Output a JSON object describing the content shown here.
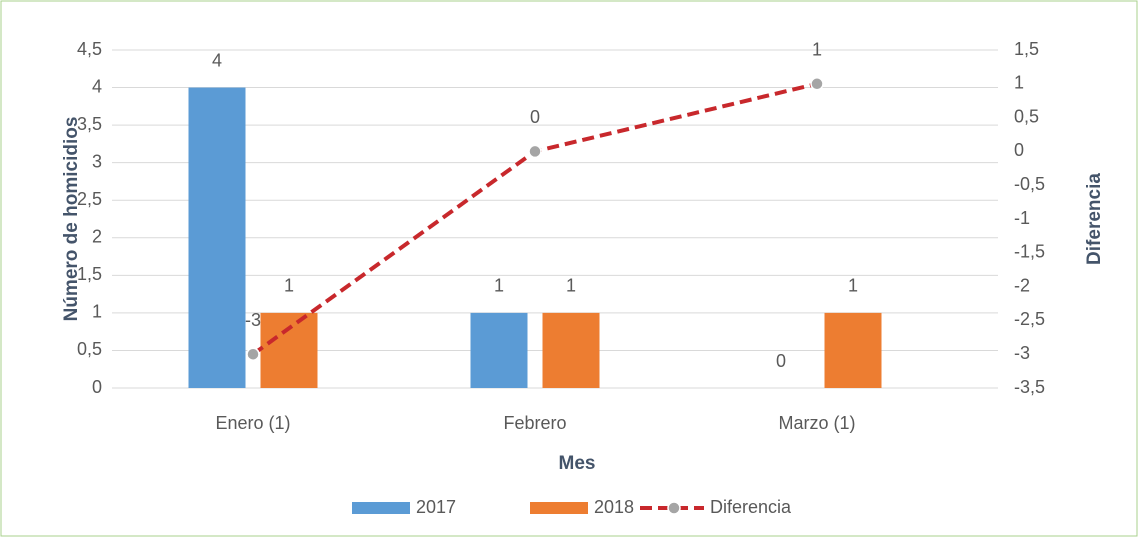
{
  "chart_data": {
    "type": "bar",
    "categories": [
      "Enero (1)",
      "Febrero",
      "Marzo (1)"
    ],
    "series": [
      {
        "name": "2017",
        "type": "bar",
        "color": "#5b9bd5",
        "values": [
          4,
          1,
          0
        ]
      },
      {
        "name": "2018",
        "type": "bar",
        "color": "#ed7d31",
        "values": [
          1,
          1,
          1
        ]
      },
      {
        "name": "Diferencia",
        "type": "line",
        "axis": "y2",
        "color": "#c8282c",
        "marker_color": "#a5a5a5",
        "values": [
          -3,
          0,
          1
        ]
      }
    ],
    "x_label": "Mes",
    "y_label": "Número de homicidios",
    "y2_label": "Diferencia",
    "ylim": [
      0,
      4.5
    ],
    "yticks": [
      0,
      {
        "value": 0.5,
        "label": "0,5"
      },
      1,
      {
        "value": 1.5,
        "label": "1,5"
      },
      2,
      {
        "value": 2.5,
        "label": "2,5"
      },
      3,
      {
        "value": 3.5,
        "label": "3,5"
      },
      4,
      {
        "value": 4.5,
        "label": "4,5"
      }
    ],
    "y2lim": [
      -3.5,
      1.5
    ],
    "y2ticks": [
      {
        "value": -3.5,
        "label": "-3,5"
      },
      -3,
      {
        "value": -2.5,
        "label": "-2,5"
      },
      -2,
      {
        "value": -1.5,
        "label": "-1,5"
      },
      -1,
      {
        "value": -0.5,
        "label": "-0,5"
      },
      0,
      {
        "value": 0.5,
        "label": "0,5"
      },
      1,
      {
        "value": 1.5,
        "label": "1,5"
      }
    ],
    "grid": true,
    "legend": "bottom"
  }
}
